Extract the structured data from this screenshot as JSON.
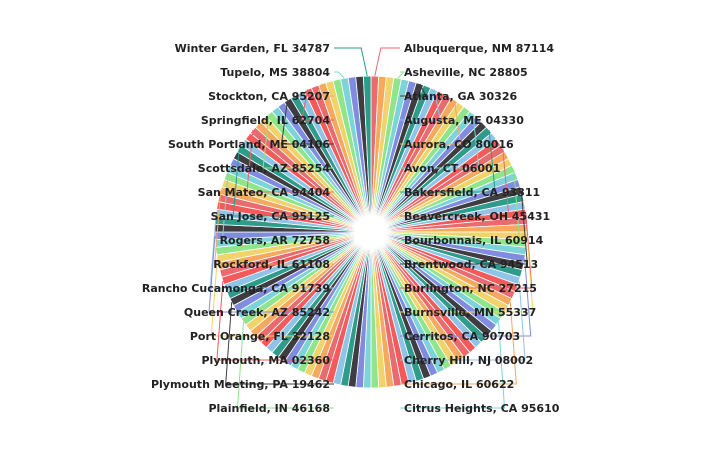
{
  "chart_data": {
    "type": "pie",
    "title": "",
    "slice_count": 128,
    "equal_slices": true,
    "palette": [
      "#e96a6f",
      "#f5a95e",
      "#f1d36b",
      "#8ee58a",
      "#7dd4d8",
      "#7f8cdf",
      "#3d3d42",
      "#2e9b8b",
      "#8fc3e8",
      "#f55a5a"
    ],
    "labels": {
      "right": [
        "Albuquerque, NM 87114",
        "Asheville, NC 28805",
        "Atlanta, GA 30326",
        "Augusta, ME 04330",
        "Aurora, CO 80016",
        "Avon, CT 06001",
        "Bakersfield, CA 93311",
        "Beavercreek, OH 45431",
        "Bourbonnais, IL 60914",
        "Brentwood, CA 94513",
        "Burlington, NC 27215",
        "Burnsville, MN 55337",
        "Cerritos, CA 90703",
        "Cherry Hill, NJ 08002",
        "Chicago, IL 60622",
        "Citrus Heights, CA 95610"
      ],
      "left": [
        "Winter Garden, FL 34787",
        "Tupelo, MS 38804",
        "Stockton, CA 95207",
        "Springfield, IL 62704",
        "South Portland, ME 04106",
        "Scottsdale, AZ 85254",
        "San Mateo, CA 94404",
        "San Jose, CA 95125",
        "Rogers, AR 72758",
        "Rockford, IL 61108",
        "Rancho Cucamonga, CA 91739",
        "Queen Creek, AZ 85242",
        "Port Orange, FL 32128",
        "Plymouth, MA 02360",
        "Plymouth Meeting, PA 19462",
        "Plainfield, IN 46168"
      ]
    },
    "label_slice_index": {
      "right": [
        0,
        3,
        6,
        8,
        11,
        14,
        17,
        20,
        23,
        26,
        29,
        32,
        35,
        38,
        41,
        44
      ],
      "left": [
        127,
        124,
        121,
        119,
        116,
        113,
        110,
        107,
        104,
        101,
        98,
        95,
        92,
        89,
        86,
        83
      ]
    },
    "legend": "none"
  }
}
